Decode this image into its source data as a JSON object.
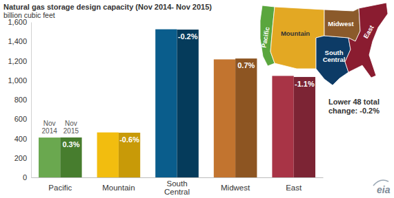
{
  "chart_data": {
    "type": "bar",
    "title": "Natural gas storage design capacity (Nov 2014- Nov 2015)",
    "subtitle": "billion cubic feet",
    "categories": [
      "Pacific",
      "Mountain",
      "South Central",
      "Midwest",
      "East"
    ],
    "series": [
      {
        "name": "Nov 2014",
        "colors": [
          "#6aa84f",
          "#f2bd0f",
          "#0a5d8c",
          "#c2742f",
          "#a83446"
        ],
        "values": [
          410,
          463,
          1525,
          1215,
          1045
        ]
      },
      {
        "name": "Nov 2015",
        "colors": [
          "#477d2e",
          "#c89a08",
          "#053b5b",
          "#8d5522",
          "#7c2434"
        ],
        "values": [
          411,
          460,
          1522,
          1224,
          1034
        ]
      }
    ],
    "change_labels": [
      "0.3%",
      "-0.6%",
      "-0.2%",
      "0.7%",
      "-1.1%"
    ],
    "annotation": [
      "Lower 48 total",
      "change: -0.2%"
    ],
    "ylim": [
      0,
      1600
    ],
    "yticks": [
      0,
      200,
      400,
      600,
      800,
      {
        "value": 1000,
        "label": "1,000"
      },
      {
        "value": 1200,
        "label": "1,200"
      },
      {
        "value": 1400,
        "label": "1,400"
      },
      {
        "value": 1600,
        "label": "1,600"
      }
    ],
    "grid": false,
    "map": {
      "regions": [
        {
          "label": "Pacific",
          "color": "#5aa63e"
        },
        {
          "label": "Mountain",
          "color": "#e3a823"
        },
        {
          "label": "South Central",
          "color": "#0d3b66"
        },
        {
          "label": "Midwest",
          "color": "#8b5a2b"
        },
        {
          "label": "East",
          "color": "#8a1c30"
        }
      ]
    },
    "logo": "eia"
  }
}
